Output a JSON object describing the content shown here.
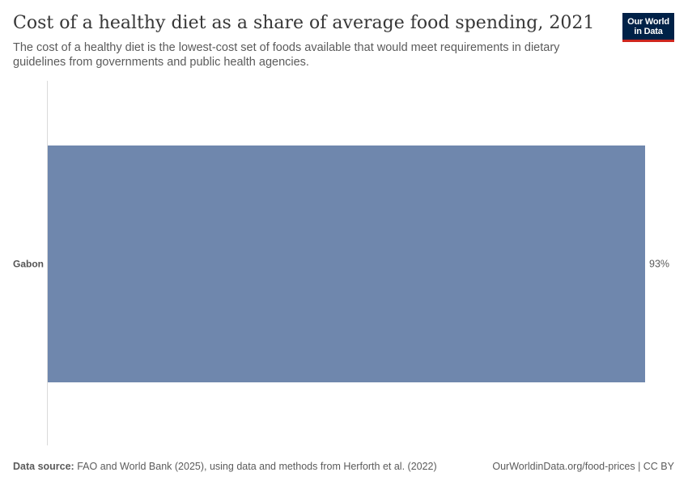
{
  "header": {
    "title": "Cost of a healthy diet as a share of average food spending, 2021",
    "subtitle": "The cost of a healthy diet is the lowest-cost set of foods available that would meet requirements in dietary guidelines from governments and public health agencies."
  },
  "logo": {
    "line1": "Our World",
    "line2": "in Data",
    "background_color": "#002147",
    "accent_color": "#ce261e"
  },
  "chart_data": {
    "type": "bar",
    "orientation": "horizontal",
    "categories": [
      "Gabon"
    ],
    "values": [
      93
    ],
    "value_labels": [
      "93%"
    ],
    "unit": "%",
    "xlim": [
      0,
      93
    ],
    "bar_color": "#6f87ad",
    "grid": false
  },
  "footer": {
    "source_label": "Data source:",
    "source_text": "FAO and World Bank (2025), using data and methods from Herforth et al. (2022)",
    "url_text": "OurWorldinData.org/food-prices | CC BY"
  }
}
